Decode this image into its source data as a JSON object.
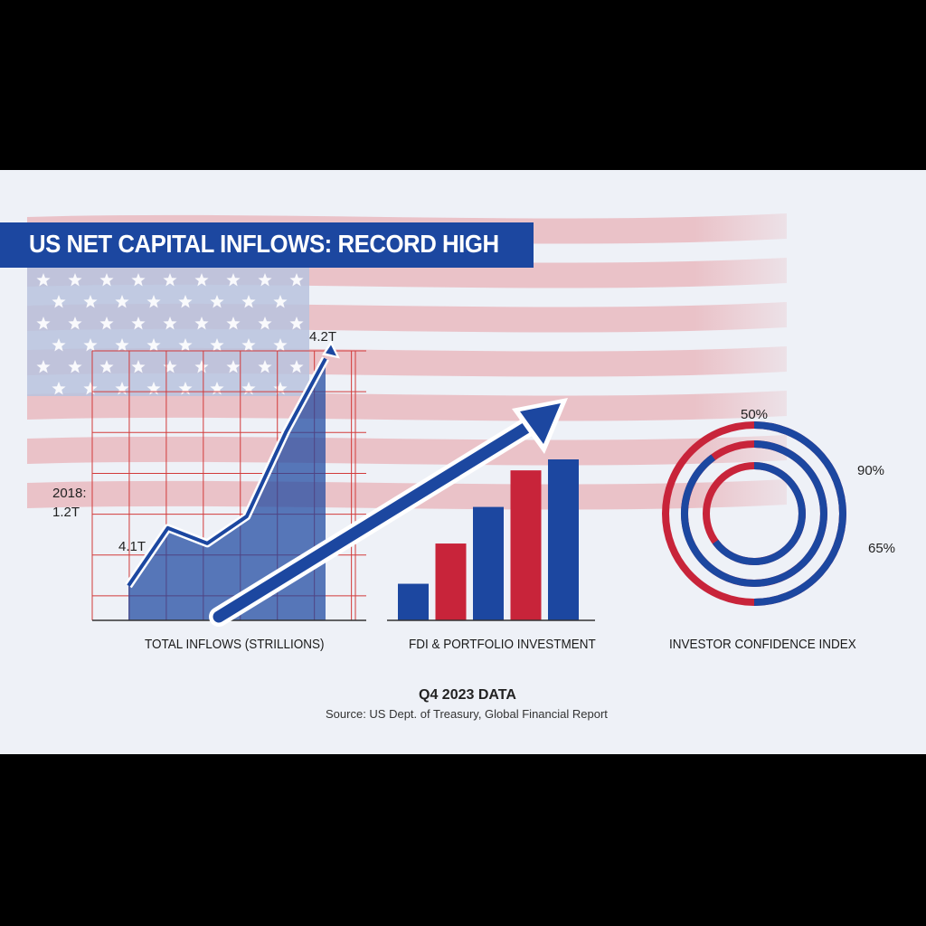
{
  "header": {
    "title": "US NET CAPITAL INFLOWS: RECORD HIGH"
  },
  "footer": {
    "period": "Q4 2023 DATA",
    "source": "Source: US Dept. of Treasury, Global Financial Report"
  },
  "colors": {
    "blue": "#1c47a0",
    "red": "#c8243a",
    "grid": "#d23a3a",
    "background": "#eef1f7"
  },
  "chart_data": [
    {
      "type": "area",
      "caption": "TOTAL INFLOWS (STRILLIONS)",
      "x": [
        0,
        1,
        2,
        3,
        4,
        5
      ],
      "y": [
        0.9,
        2.4,
        2.0,
        2.7,
        4.9,
        6.8
      ],
      "ylim": [
        0,
        7
      ],
      "grid": true,
      "annotations": [
        {
          "text": "2018:",
          "side": "left-upper"
        },
        {
          "text": "1.2T",
          "side": "left-upper-2"
        },
        {
          "text": "4.1T",
          "side": "left-lower"
        },
        {
          "text": "4.2T",
          "side": "top-end"
        }
      ]
    },
    {
      "type": "bar",
      "caption": "FDI & PORTFOLIO INVESTMENT",
      "values": [
        1.0,
        2.1,
        3.1,
        4.1,
        4.4
      ],
      "bar_colors": [
        "#1c47a0",
        "#c8243a",
        "#1c47a0",
        "#c8243a",
        "#1c47a0"
      ],
      "trend_arrow": true
    },
    {
      "type": "pie",
      "caption": "INVESTOR CONFIDENCE INDEX",
      "rings": [
        {
          "label": "50%",
          "value": 50,
          "color": "#1c47a0"
        },
        {
          "label": "90%",
          "value": 90,
          "color": "#1c47a0"
        },
        {
          "label": "65%",
          "value": 65,
          "color": "#1c47a0"
        }
      ]
    }
  ]
}
